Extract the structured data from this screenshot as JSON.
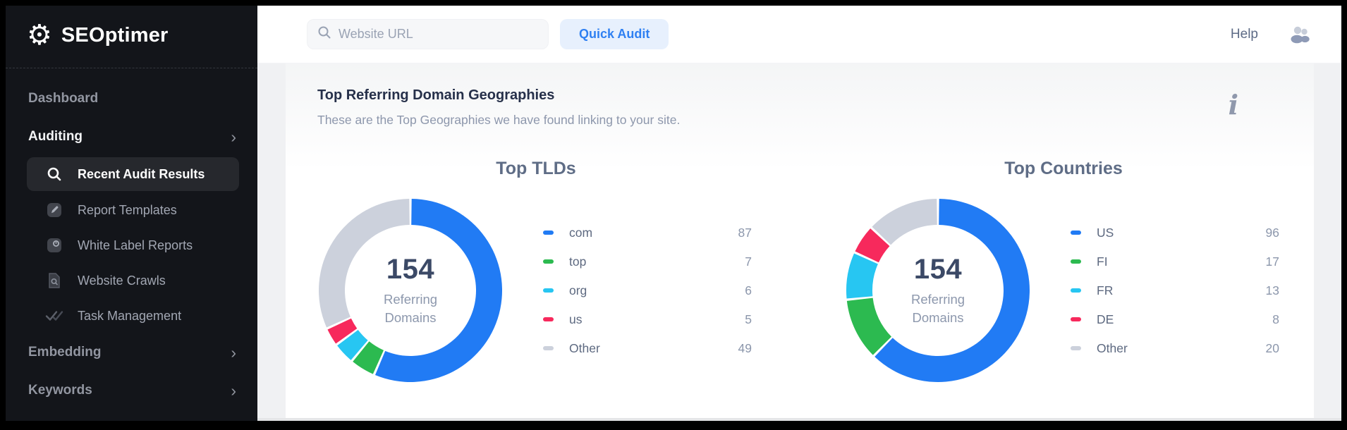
{
  "icons": {
    "gear_glyph": "⚙",
    "chevron_glyph": "›"
  },
  "sidebar": {
    "logo_text": "SEOptimer",
    "items": [
      {
        "label": "Dashboard"
      },
      {
        "label": "Auditing"
      },
      {
        "label": "Recent Audit Results"
      },
      {
        "label": "Report Templates"
      },
      {
        "label": "White Label Reports"
      },
      {
        "label": "Website Crawls"
      },
      {
        "label": "Task Management"
      },
      {
        "label": "Embedding"
      },
      {
        "label": "Keywords"
      }
    ]
  },
  "topbar": {
    "search_placeholder": "Website URL",
    "quick_audit_label": "Quick Audit",
    "help_label": "Help"
  },
  "panel": {
    "title": "Top Referring Domain Geographies",
    "subtitle": "These are the Top Geographies we have found linking to your site.",
    "info_glyph": "i"
  },
  "colors": {
    "accent_blue": "#2f80f2",
    "quick_audit_bg": "#e7f0fd",
    "sidebar_bg": "#13151a",
    "active_item_bg": "#26282d",
    "series": [
      "#217BF4",
      "#2CBA50",
      "#27C6F2",
      "#F7295C",
      "#CCD1DC"
    ]
  },
  "chart_data": [
    {
      "type": "pie",
      "variant": "donut",
      "title": "Top TLDs",
      "center_value": "154",
      "center_sublabel_lines": [
        "Referring",
        "Domains"
      ],
      "labels": [
        "com",
        "top",
        "org",
        "us",
        "Other"
      ],
      "values": [
        87,
        7,
        6,
        5,
        49
      ],
      "colors": [
        "#217BF4",
        "#2CBA50",
        "#27C6F2",
        "#F7295C",
        "#CCD1DC"
      ],
      "legend_position": "right"
    },
    {
      "type": "pie",
      "variant": "donut",
      "title": "Top Countries",
      "center_value": "154",
      "center_sublabel_lines": [
        "Referring",
        "Domains"
      ],
      "labels": [
        "US",
        "FI",
        "FR",
        "DE",
        "Other"
      ],
      "values": [
        96,
        17,
        13,
        8,
        20
      ],
      "colors": [
        "#217BF4",
        "#2CBA50",
        "#27C6F2",
        "#F7295C",
        "#CCD1DC"
      ],
      "legend_position": "right"
    }
  ]
}
